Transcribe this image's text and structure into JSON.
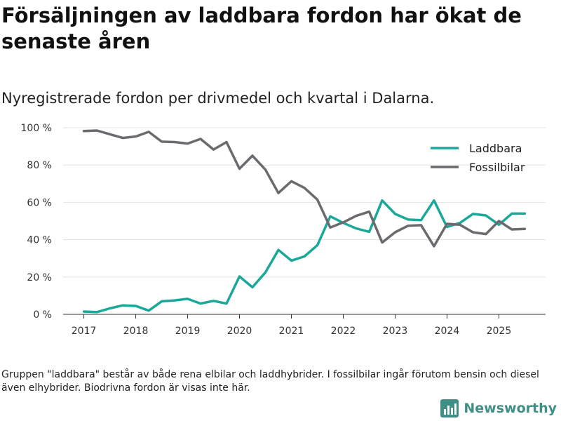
{
  "title": "Försäljningen av laddbara fordon har ökat de senaste åren",
  "subtitle": "Nyregistrerade fordon per drivmedel och kvartal i Dalarna.",
  "footnote": "Gruppen \"laddbara\" består av både rena elbilar och laddhybrider. I fossilbilar ingår förutom bensin och diesel även elhybrider. Biodrivna fordon är visas inte här.",
  "brand": {
    "name": "Newsworthy"
  },
  "chart_data": {
    "type": "line",
    "title": "Försäljningen av laddbara fordon har ökat de senaste åren",
    "xlabel": "",
    "ylabel": "",
    "x_start": 2017.0,
    "x_step": 0.25,
    "xlim": [
      2016.6,
      2025.9
    ],
    "ylim": [
      0,
      100
    ],
    "x_ticks": [
      2017,
      2018,
      2019,
      2020,
      2021,
      2022,
      2023,
      2024,
      2025
    ],
    "x_tick_labels": [
      "2017",
      "2018",
      "2019",
      "2020",
      "2021",
      "2022",
      "2023",
      "2024",
      "2025"
    ],
    "y_ticks": [
      0,
      20,
      40,
      60,
      80,
      100
    ],
    "y_tick_labels": [
      "0 %",
      "20 %",
      "40 %",
      "60 %",
      "80 %",
      "100 %"
    ],
    "grid": true,
    "legend_position": "top-right",
    "series": [
      {
        "name": "Laddbara",
        "color": "#1aa898",
        "values": [
          1.5,
          1.2,
          3.2,
          4.8,
          4.5,
          2.0,
          7.0,
          7.5,
          8.3,
          5.8,
          7.2,
          5.8,
          20.3,
          14.5,
          22.5,
          34.5,
          28.8,
          31.0,
          37.0,
          52.5,
          49.0,
          46.0,
          44.2,
          61.0,
          53.8,
          50.8,
          50.5,
          61.0,
          46.8,
          49.0,
          53.8,
          53.0,
          48.0,
          54.0,
          54.0
        ]
      },
      {
        "name": "Fossilbilar",
        "color": "#6b6a6f",
        "values": [
          98.2,
          98.5,
          96.5,
          94.5,
          95.3,
          97.8,
          92.5,
          92.3,
          91.5,
          94.0,
          88.3,
          92.3,
          78.0,
          85.0,
          77.5,
          65.0,
          71.3,
          67.8,
          61.5,
          46.5,
          49.3,
          52.8,
          55.0,
          38.5,
          44.0,
          47.5,
          47.8,
          36.5,
          48.5,
          48.0,
          44.0,
          43.0,
          50.0,
          45.5,
          45.8
        ]
      }
    ]
  }
}
